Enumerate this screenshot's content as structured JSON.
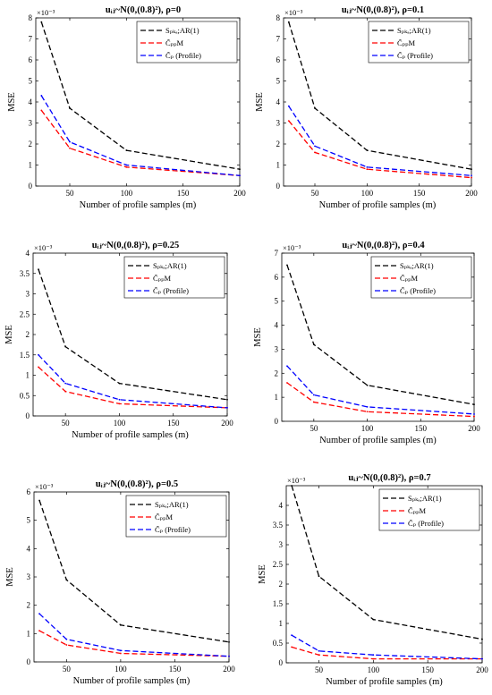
{
  "figure": {
    "layout": "3x2 grid"
  },
  "chart_data": [
    {
      "type": "line",
      "title": "uᵢⱼ~N(0,(0.8)²), ρ=0",
      "xlabel": "Number of profile samples (m)",
      "ylabel": "MSE",
      "exponent_label": "×10⁻³",
      "x": [
        25,
        50,
        100,
        200
      ],
      "xlim": [
        20,
        200
      ],
      "ylim": [
        0,
        8
      ],
      "xticks": [
        50,
        100,
        150,
        200
      ],
      "yticks": [
        0,
        1,
        2,
        3,
        4,
        5,
        6,
        7,
        8
      ],
      "grid": false,
      "legend": "top-right",
      "series": [
        {
          "name": "Sₚₖₐ;AR(1)",
          "values": [
            7.8,
            3.7,
            1.7,
            0.8
          ],
          "color": "#000000"
        },
        {
          "name": "C̃ₚₚM",
          "values": [
            3.6,
            1.8,
            0.9,
            0.5
          ],
          "color": "#ff0000"
        },
        {
          "name": "C̃ₚ (Profile)",
          "values": [
            4.3,
            2.1,
            1.0,
            0.5
          ],
          "color": "#0000ff"
        }
      ]
    },
    {
      "type": "line",
      "title": "uᵢⱼ~N(0,(0.8)²), ρ=0.1",
      "xlabel": "Number of profile samples (m)",
      "ylabel": "MSE",
      "exponent_label": "×10⁻³",
      "x": [
        25,
        50,
        100,
        200
      ],
      "xlim": [
        20,
        200
      ],
      "ylim": [
        0,
        8
      ],
      "xticks": [
        50,
        100,
        150,
        200
      ],
      "yticks": [
        0,
        1,
        2,
        3,
        4,
        5,
        6,
        7,
        8
      ],
      "grid": false,
      "legend": "top-right",
      "series": [
        {
          "name": "Sₚₖₐ;AR(1)",
          "values": [
            7.8,
            3.7,
            1.7,
            0.8
          ],
          "color": "#000000"
        },
        {
          "name": "C̃ₚₚM",
          "values": [
            3.1,
            1.6,
            0.8,
            0.4
          ],
          "color": "#ff0000"
        },
        {
          "name": "C̃ₚ (Profile)",
          "values": [
            3.8,
            1.9,
            0.9,
            0.5
          ],
          "color": "#0000ff"
        }
      ]
    },
    {
      "type": "line",
      "title": "uᵢⱼ~N(0,(0.8)²), ρ=0.25",
      "xlabel": "Number of profile samples (m)",
      "ylabel": "MSE",
      "exponent_label": "×10⁻³",
      "x": [
        25,
        50,
        100,
        200
      ],
      "xlim": [
        20,
        200
      ],
      "ylim": [
        0,
        4
      ],
      "xticks": [
        50,
        100,
        150,
        200
      ],
      "yticks": [
        0,
        0.5,
        1,
        1.5,
        2,
        2.5,
        3,
        3.5,
        4
      ],
      "grid": false,
      "legend": "top-right",
      "series": [
        {
          "name": "Sₚₖₐ;AR(1)",
          "values": [
            3.6,
            1.7,
            0.8,
            0.4
          ],
          "color": "#000000"
        },
        {
          "name": "C̃ₚₚM",
          "values": [
            1.2,
            0.6,
            0.3,
            0.2
          ],
          "color": "#ff0000"
        },
        {
          "name": "C̃ₚ (Profile)",
          "values": [
            1.5,
            0.8,
            0.4,
            0.2
          ],
          "color": "#0000ff"
        }
      ]
    },
    {
      "type": "line",
      "title": "uᵢⱼ~N(0,(0.8)²), ρ=0.4",
      "xlabel": "Number of profile samples (m)",
      "ylabel": "MSE",
      "exponent_label": "×10⁻³",
      "x": [
        25,
        50,
        100,
        200
      ],
      "xlim": [
        20,
        200
      ],
      "ylim": [
        0,
        7
      ],
      "xticks": [
        50,
        100,
        150,
        200
      ],
      "yticks": [
        0,
        1,
        2,
        3,
        4,
        5,
        6,
        7
      ],
      "grid": false,
      "legend": "top-right",
      "series": [
        {
          "name": "Sₚₖₐ;AR(1)",
          "values": [
            6.5,
            3.2,
            1.5,
            0.7
          ],
          "color": "#000000"
        },
        {
          "name": "C̃ₚₚM",
          "values": [
            1.6,
            0.8,
            0.4,
            0.2
          ],
          "color": "#ff0000"
        },
        {
          "name": "C̃ₚ (Profile)",
          "values": [
            2.3,
            1.1,
            0.6,
            0.3
          ],
          "color": "#0000ff"
        }
      ]
    },
    {
      "type": "line",
      "title": "uᵢⱼ~N(0,(0.8)²), ρ=0.5",
      "xlabel": "Number of profile samples (m)",
      "ylabel": "MSE",
      "exponent_label": "×10⁻³",
      "x": [
        25,
        50,
        100,
        200
      ],
      "xlim": [
        20,
        200
      ],
      "ylim": [
        0,
        6
      ],
      "xticks": [
        50,
        100,
        150,
        200
      ],
      "yticks": [
        0,
        1,
        2,
        3,
        4,
        5,
        6
      ],
      "grid": false,
      "legend": "top-right",
      "series": [
        {
          "name": "Sₚₖₐ;AR(1)",
          "values": [
            5.7,
            2.9,
            1.3,
            0.7
          ],
          "color": "#000000"
        },
        {
          "name": "C̃ₚₚM",
          "values": [
            1.1,
            0.6,
            0.3,
            0.2
          ],
          "color": "#ff0000"
        },
        {
          "name": "C̃ₚ (Profile)",
          "values": [
            1.7,
            0.8,
            0.4,
            0.2
          ],
          "color": "#0000ff"
        }
      ]
    },
    {
      "type": "line",
      "title": "uᵢⱼ~N(0,(0.8)²), ρ=0.7",
      "xlabel": "Number of profile samples (m)",
      "ylabel": "MSE",
      "exponent_label": "×10⁻³",
      "x": [
        25,
        50,
        100,
        200
      ],
      "xlim": [
        20,
        200
      ],
      "ylim": [
        0,
        4.5
      ],
      "xticks": [
        50,
        100,
        150,
        200
      ],
      "yticks": [
        0,
        0.5,
        1,
        1.5,
        2,
        2.5,
        3,
        3.5,
        4
      ],
      "grid": false,
      "legend": "top-right",
      "series": [
        {
          "name": "Sₚₖₐ;AR(1)",
          "values": [
            4.5,
            2.2,
            1.1,
            0.6
          ],
          "color": "#000000"
        },
        {
          "name": "C̃ₚₚM",
          "values": [
            0.4,
            0.2,
            0.1,
            0.1
          ],
          "color": "#ff0000"
        },
        {
          "name": "C̃ₚ (Profile)",
          "values": [
            0.7,
            0.3,
            0.2,
            0.1
          ],
          "color": "#0000ff"
        }
      ]
    }
  ]
}
